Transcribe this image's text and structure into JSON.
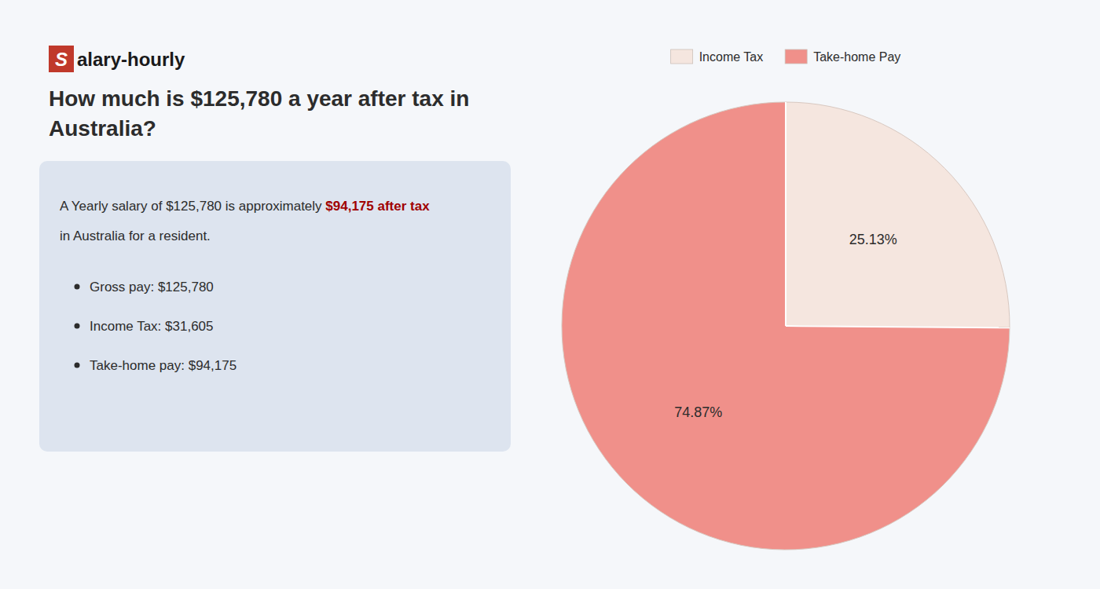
{
  "chart_data": {
    "type": "pie",
    "title": "How much is $125,780 a year after tax in Australia?",
    "categories": [
      "Income Tax",
      "Take-home Pay"
    ],
    "values": [
      25.13,
      74.87
    ],
    "value_labels": [
      "25.13%",
      "74.87%"
    ],
    "colors": [
      "#f5e6df",
      "#f0908a"
    ],
    "data_labels": true,
    "legend": "top",
    "annotations": [
      {
        "text": "S",
        "color": "#c0392b"
      },
      {
        "text": "alary-hourly"
      },
      {
        "text": "A Yearly salary of $125,780 is approximately "
      },
      {
        "text": "$94,175 after tax",
        "color": "#a00000"
      },
      {
        "text": "in Australia for a resident."
      },
      {
        "text": "Gross pay: $125,780"
      },
      {
        "text": "Income Tax: $31,605"
      },
      {
        "text": "Take-home pay: $94,175"
      }
    ]
  }
}
